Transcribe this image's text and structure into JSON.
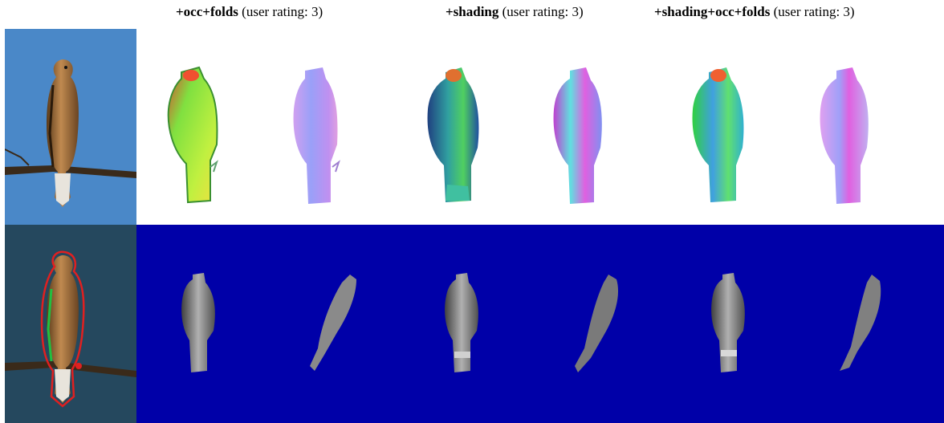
{
  "columns": [
    {
      "method": "+occ+folds",
      "rating": "(user rating: 3)"
    },
    {
      "method": "+shading",
      "rating": "(user rating: 3)"
    },
    {
      "method": "+shading+occ+folds",
      "rating": "(user rating: 3)"
    }
  ],
  "colors": {
    "top_photo_sky": "#4a88c8",
    "bottom_photo_bg": "#25485e",
    "render_background": "#0000a8",
    "outline_red": "#e02020",
    "fold_green": "#20c040"
  }
}
